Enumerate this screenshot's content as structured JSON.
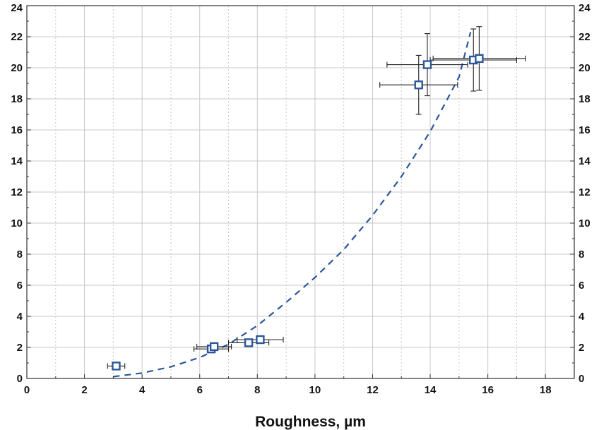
{
  "chart_data": {
    "type": "scatter",
    "xlabel": "Roughness, µm",
    "ylabel": "",
    "xlim": [
      0,
      19
    ],
    "ylim": [
      0,
      24
    ],
    "x_ticks": [
      0,
      2,
      4,
      6,
      8,
      10,
      12,
      14,
      16,
      18
    ],
    "y_ticks": [
      0,
      2,
      4,
      6,
      8,
      10,
      12,
      14,
      16,
      18,
      20,
      22,
      24
    ],
    "grid": true,
    "colors": {
      "marker": "#2b579a",
      "fit": "#2b579a",
      "error_bar": "#222222",
      "grid": "#c8c8c8"
    },
    "points": [
      {
        "x": 3.1,
        "y": 0.8,
        "xerr": 0.3,
        "yerr": 0.0
      },
      {
        "x": 6.4,
        "y": 1.9,
        "xerr": 0.6,
        "yerr": 0.1
      },
      {
        "x": 6.5,
        "y": 2.05,
        "xerr": 0.6,
        "yerr": 0.1
      },
      {
        "x": 7.7,
        "y": 2.3,
        "xerr": 0.7,
        "yerr": 0.1
      },
      {
        "x": 8.1,
        "y": 2.5,
        "xerr": 0.8,
        "yerr": 0.15
      },
      {
        "x": 13.6,
        "y": 18.9,
        "xerr": 1.35,
        "yerr": 1.9
      },
      {
        "x": 13.9,
        "y": 20.2,
        "xerr": 1.4,
        "yerr": 2.0
      },
      {
        "x": 15.5,
        "y": 20.5,
        "xerr": 1.5,
        "yerr": 2.0
      },
      {
        "x": 15.7,
        "y": 20.6,
        "xerr": 1.6,
        "yerr": 2.05
      }
    ],
    "fit_curve": {
      "style": "dashed",
      "x": [
        3.0,
        4.0,
        5.0,
        6.0,
        7.0,
        8.0,
        9.0,
        10.0,
        11.0,
        12.0,
        13.0,
        14.0,
        15.0,
        15.4
      ],
      "y": [
        0.12,
        0.35,
        0.75,
        1.35,
        2.2,
        3.4,
        4.9,
        6.5,
        8.3,
        10.5,
        13.0,
        15.9,
        19.4,
        22.3
      ]
    }
  }
}
